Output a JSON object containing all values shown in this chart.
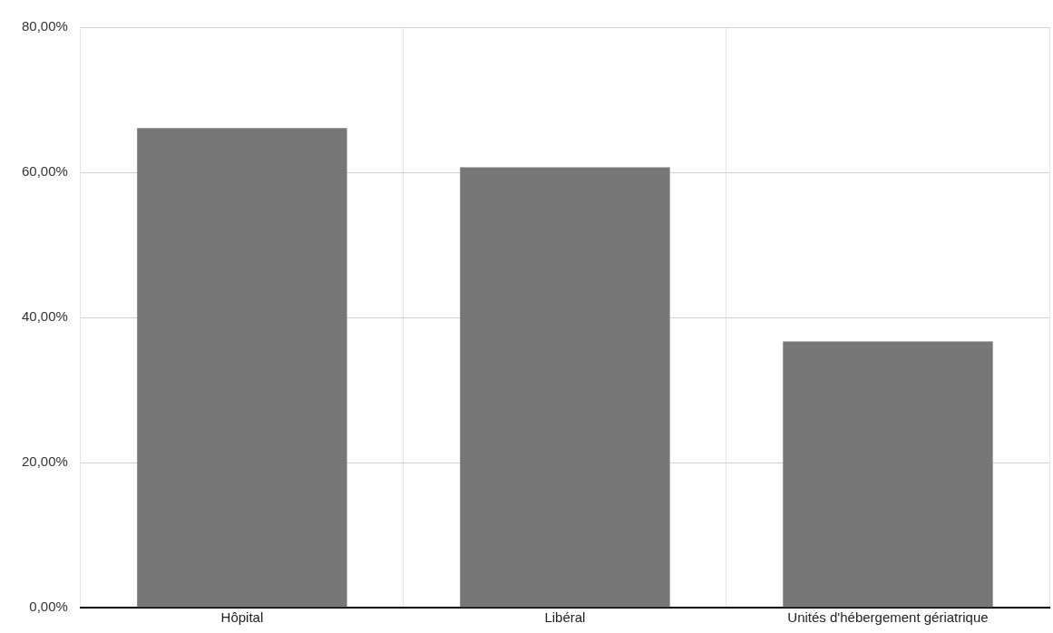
{
  "chart_data": {
    "type": "bar",
    "categories": [
      "Hôpital",
      "Libéral",
      "Unités d'hébergement gériatrique"
    ],
    "values": [
      66.1,
      60.7,
      36.7
    ],
    "color": "#777777",
    "ylim": [
      0,
      80
    ],
    "yticks": [
      {
        "value": 0,
        "label": "0,00%"
      },
      {
        "value": 20,
        "label": "20,00%"
      },
      {
        "value": 40,
        "label": "40,00%"
      },
      {
        "value": 60,
        "label": "60,00%"
      },
      {
        "value": 80,
        "label": "80,00%"
      }
    ],
    "grid": true
  }
}
